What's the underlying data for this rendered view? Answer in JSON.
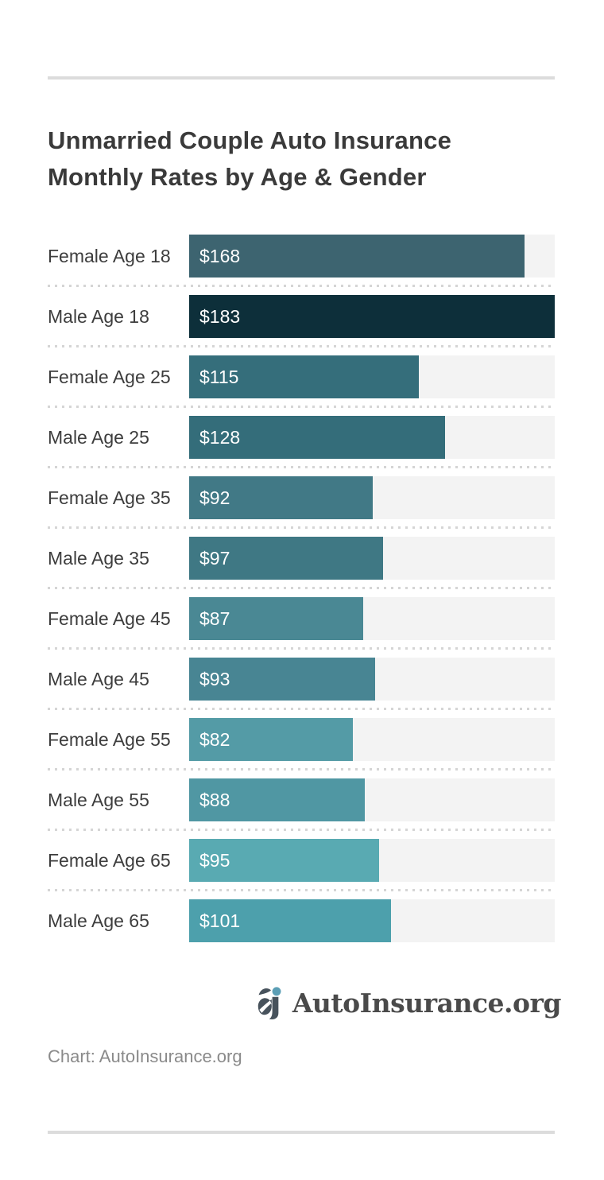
{
  "title": {
    "line1": "Unmarried Couple Auto Insurance",
    "line2": "Monthly Rates by Age & Gender"
  },
  "chart_data": {
    "type": "bar",
    "orientation": "horizontal",
    "title": "Unmarried Couple Auto Insurance Monthly Rates by Age & Gender",
    "categories": [
      "Female Age 18",
      "Male Age 18",
      "Female Age 25",
      "Male Age 25",
      "Female Age 35",
      "Male Age 35",
      "Female Age 45",
      "Male Age 45",
      "Female Age 55",
      "Male Age 55",
      "Female Age 65",
      "Male Age 65"
    ],
    "values": [
      168,
      183,
      115,
      128,
      92,
      97,
      87,
      93,
      82,
      88,
      95,
      101
    ],
    "value_labels": [
      "$168",
      "$183",
      "$115",
      "$128",
      "$92",
      "$97",
      "$87",
      "$93",
      "$82",
      "$88",
      "$95",
      "$101"
    ],
    "bar_colors": [
      "#3d6470",
      "#0d2f3a",
      "#356e7b",
      "#346d7a",
      "#417986",
      "#3f7884",
      "#4a8894",
      "#488593",
      "#549ba6",
      "#5097a3",
      "#59aab2",
      "#4da0ac"
    ],
    "xlim": [
      0,
      183
    ],
    "max_value": 183,
    "track_color": "#f3f3f3",
    "value_label_position": "inside-left",
    "value_label_color": "#ffffff",
    "grid": false,
    "legend": false
  },
  "logo": {
    "text": "AutoInsurance.org",
    "icon": "aj-monogram-icon",
    "icon_letter_color": "#47525c",
    "icon_dot_color": "#5b9eb5"
  },
  "caption": {
    "text": "Chart: AutoInsurance.org"
  },
  "colors": {
    "background": "#ffffff",
    "divider": "#dcdcdc",
    "separator_dots": "#d5d5d5",
    "title_text": "#3a3a3a",
    "label_text": "#3d3d3d",
    "value_text": "#ffffff",
    "caption_text": "#8a8a8a",
    "logo_text": "#4a4a4a"
  }
}
